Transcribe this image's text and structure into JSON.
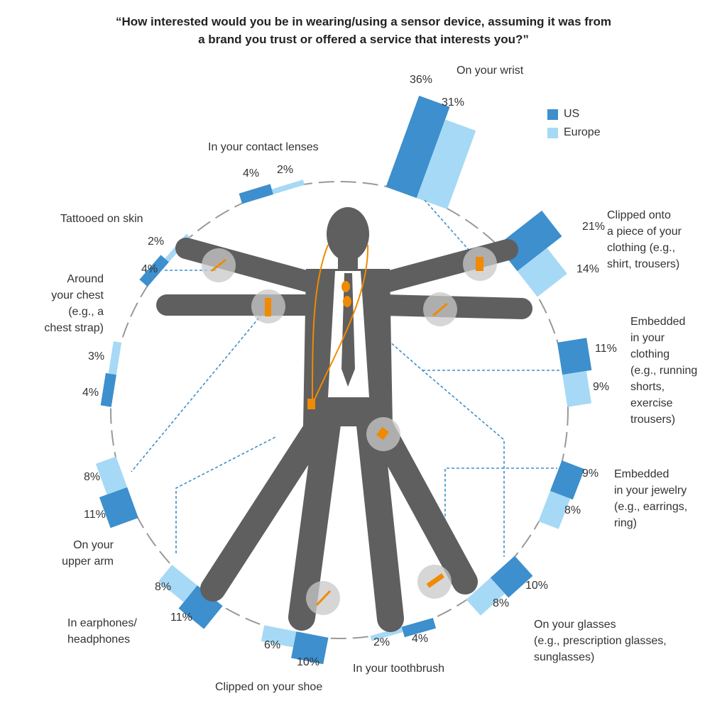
{
  "chart_data": {
    "type": "bar",
    "subtype": "radial-grouped-bar",
    "title": "“How interested would you be in wearing/using a sensor device, assuming it was from\na brand you trust or offered a service that interests you?”",
    "unit": "%",
    "legend": {
      "placement": "top-right",
      "entries": [
        "US",
        "Europe"
      ]
    },
    "colors": {
      "US": "#3d8fcd",
      "Europe": "#a6d9f5"
    },
    "series_names": [
      "US",
      "Europe"
    ],
    "categories": [
      {
        "name": "On your wrist",
        "us": 36,
        "europe": 31
      },
      {
        "name": "Clipped onto\na piece of your\nclothing (e.g.,\nshirt, trousers)",
        "us": 21,
        "europe": 14
      },
      {
        "name": "Embedded\nin your\nclothing\n(e.g., running\nshorts,\nexercise\ntrousers)",
        "us": 11,
        "europe": 9
      },
      {
        "name": "Embedded\nin your jewelry\n(e.g., earrings,\nring)",
        "us": 9,
        "europe": 8
      },
      {
        "name": "On your glasses\n(e.g., prescription glasses,\nsunglasses)",
        "us": 10,
        "europe": 8
      },
      {
        "name": "In your toothbrush",
        "us": 4,
        "europe": 2
      },
      {
        "name": "Clipped on your shoe",
        "us": 10,
        "europe": 6
      },
      {
        "name": "In earphones/\nheadphones",
        "us": 11,
        "europe": 8
      },
      {
        "name": "On your\nupper arm",
        "us": 11,
        "europe": 8
      },
      {
        "name": "Around\nyour chest\n(e.g., a\nchest strap)",
        "us": 4,
        "europe": 3
      },
      {
        "name": "Tattooed on skin",
        "us": 4,
        "europe": 2
      },
      {
        "name": "In your contact lenses",
        "us": 4,
        "europe": 2
      }
    ]
  }
}
